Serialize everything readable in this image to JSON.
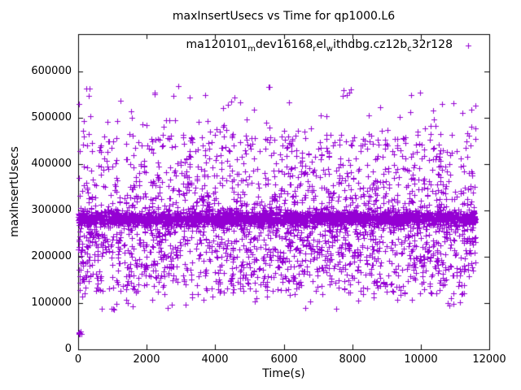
{
  "chart_data": {
    "type": "scatter",
    "title": "maxInsertUsecs vs Time for qp1000.L6",
    "xlabel": "Time(s)",
    "ylabel": "maxInsertUsecs",
    "xlim": [
      0,
      12000
    ],
    "ylim": [
      0,
      680000
    ],
    "xticks": [
      0,
      2000,
      4000,
      6000,
      8000,
      10000,
      12000
    ],
    "yticks": [
      0,
      100000,
      200000,
      300000,
      400000,
      500000,
      600000
    ],
    "grid": false,
    "legend_position": "top-center-inside",
    "axis_color": "#000000",
    "series": [
      {
        "name": "ma120101_mdev16168_rel_withdbg.cz12b_c32r128",
        "label_parts": [
          {
            "t": "ma120101",
            "sub": false
          },
          {
            "t": "m",
            "sub": true
          },
          {
            "t": "dev16168",
            "sub": false
          },
          {
            "t": "r",
            "sub": true
          },
          {
            "t": "el",
            "sub": false
          },
          {
            "t": "w",
            "sub": true
          },
          {
            "t": "ithdbg.cz12b",
            "sub": false
          },
          {
            "t": "c",
            "sub": true
          },
          {
            "t": "32r128",
            "sub": false
          }
        ],
        "marker": "+",
        "color": "#9400d3",
        "point_count": 4600,
        "x_range": [
          0,
          11600
        ],
        "seed": 42,
        "distribution": {
          "dense_band": {
            "center": 282000,
            "sigma": 7000,
            "fraction": 0.5
          },
          "scatter_low": {
            "min": 118000,
            "max": 272000,
            "fraction": 0.28,
            "bias": "toward_max"
          },
          "scatter_high": {
            "min": 293000,
            "max": 465000,
            "fraction": 0.194,
            "bias": "toward_min"
          },
          "high_tail": {
            "min": 440000,
            "max": 575000,
            "fraction": 0.018,
            "bias": "toward_min"
          },
          "low_tail": {
            "min": 85000,
            "max": 125000,
            "fraction": 0.008
          },
          "startup_cluster": {
            "x_max": 90,
            "y_min": 25000,
            "y_max": 40000,
            "count": 7
          }
        }
      }
    ]
  }
}
